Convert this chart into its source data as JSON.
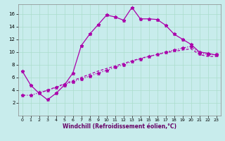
{
  "xlabel": "Windchill (Refroidissement éolien,°C)",
  "bg_color": "#c8ecec",
  "grid_color": "#aaddcc",
  "line_color": "#aa00aa",
  "xlim": [
    -0.5,
    23.5
  ],
  "ylim": [
    0,
    17.5
  ],
  "xticks": [
    0,
    1,
    2,
    3,
    4,
    5,
    6,
    7,
    8,
    9,
    10,
    11,
    12,
    13,
    14,
    15,
    16,
    17,
    18,
    19,
    20,
    21,
    22,
    23
  ],
  "yticks": [
    2,
    4,
    6,
    8,
    10,
    12,
    14,
    16
  ],
  "series1_x": [
    0,
    1,
    2,
    3,
    4,
    5,
    6,
    7,
    8,
    9,
    10,
    11,
    12,
    13,
    14,
    15,
    16,
    17,
    18,
    19,
    20,
    21,
    22,
    23
  ],
  "series1_y": [
    7.0,
    4.8,
    3.5,
    2.5,
    3.5,
    4.8,
    6.7,
    11.0,
    12.8,
    14.3,
    15.8,
    15.5,
    15.0,
    17.0,
    15.2,
    15.2,
    15.1,
    14.2,
    12.8,
    12.0,
    11.2,
    10.0,
    9.8,
    9.5
  ],
  "series2_x": [
    0,
    1,
    2,
    3,
    4,
    5,
    6,
    7,
    8,
    9,
    10,
    11,
    12,
    13,
    14,
    15,
    16,
    17,
    18,
    19,
    20,
    21,
    22,
    23
  ],
  "series2_y": [
    3.2,
    3.2,
    3.6,
    4.0,
    4.4,
    4.9,
    5.3,
    5.8,
    6.2,
    6.7,
    7.1,
    7.6,
    8.0,
    8.5,
    8.9,
    9.3,
    9.6,
    10.0,
    10.3,
    10.6,
    10.9,
    9.8,
    9.6,
    9.6
  ],
  "series3_x": [
    2,
    3,
    4,
    5,
    6,
    7,
    8,
    9,
    10,
    11,
    12,
    13,
    14,
    15,
    16,
    17,
    18,
    19,
    20,
    21,
    22,
    23
  ],
  "series3_y": [
    3.5,
    4.0,
    4.5,
    5.0,
    5.5,
    6.0,
    6.5,
    7.0,
    7.4,
    7.8,
    8.2,
    8.6,
    9.0,
    9.3,
    9.6,
    9.9,
    10.1,
    10.3,
    10.5,
    9.6,
    9.3,
    9.3
  ]
}
